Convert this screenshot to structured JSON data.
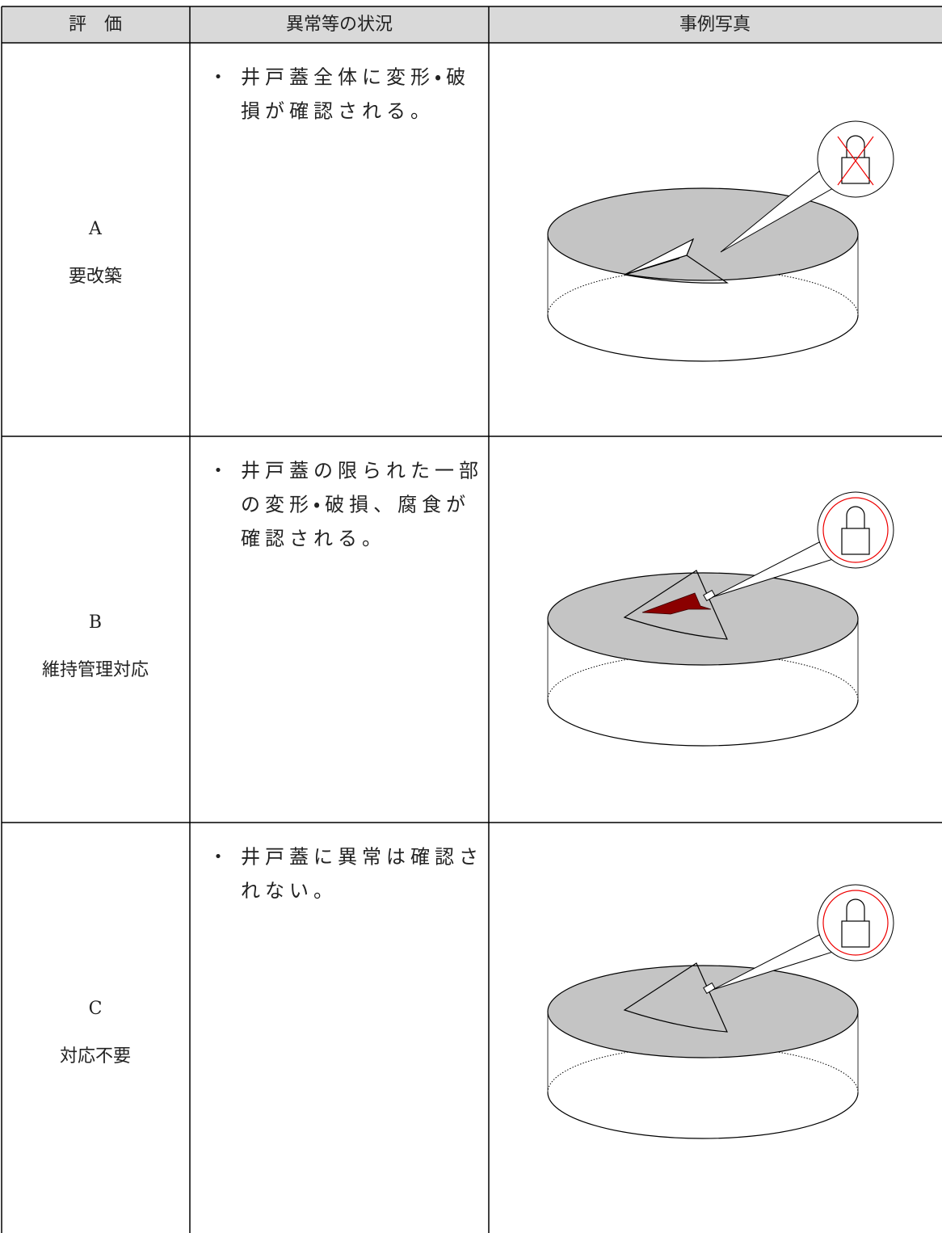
{
  "header": {
    "columns": [
      "評　価",
      "異常等の状況",
      "事例写真"
    ]
  },
  "rows": [
    {
      "grade": "A",
      "label": "要改築",
      "description": {
        "bullet": "・",
        "lines": [
          "井戸蓋全体に変形・破",
          "損が確認される。"
        ]
      }
    },
    {
      "grade": "B",
      "label": "維持管理対応",
      "description": {
        "bullet": "・",
        "lines": [
          "井戸蓋の限られた一部",
          "の変形・破損、腐食が",
          "確認される。"
        ]
      }
    },
    {
      "grade": "C",
      "label": "対応不要",
      "description": {
        "bullet": "・",
        "lines": [
          "井戸蓋に異常は確認さ",
          "れない。"
        ]
      }
    }
  ]
}
